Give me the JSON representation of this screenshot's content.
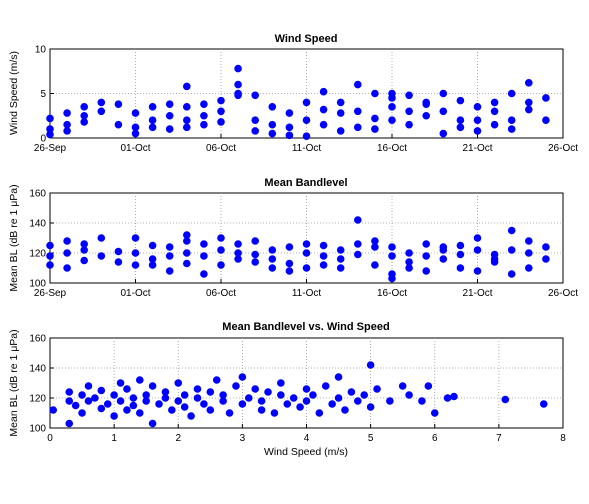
{
  "chart_data": [
    {
      "type": "scatter",
      "title": "Wind Speed",
      "xlabel": "",
      "ylabel": "Wind Speed (m/s)",
      "x_axis": "date",
      "xlim": [
        "26-Sep",
        "26-Oct"
      ],
      "ylim": [
        0,
        10
      ],
      "xticks": [
        "26-Sep",
        "01-Oct",
        "06-Oct",
        "11-Oct",
        "16-Oct",
        "21-Oct",
        "26-Oct"
      ],
      "yticks": [
        0,
        5,
        10
      ],
      "grid": true,
      "color": "#0000ff",
      "x": [
        "26-Sep",
        "26-Sep",
        "26-Sep",
        "27-Sep",
        "27-Sep",
        "27-Sep",
        "28-Sep",
        "28-Sep",
        "28-Sep",
        "29-Sep",
        "29-Sep",
        "30-Sep",
        "30-Sep",
        "01-Oct",
        "01-Oct",
        "01-Oct",
        "02-Oct",
        "02-Oct",
        "02-Oct",
        "03-Oct",
        "03-Oct",
        "03-Oct",
        "04-Oct",
        "04-Oct",
        "04-Oct",
        "04-Oct",
        "05-Oct",
        "05-Oct",
        "05-Oct",
        "06-Oct",
        "06-Oct",
        "06-Oct",
        "07-Oct",
        "07-Oct",
        "07-Oct",
        "07-Oct",
        "08-Oct",
        "08-Oct",
        "08-Oct",
        "09-Oct",
        "09-Oct",
        "09-Oct",
        "10-Oct",
        "10-Oct",
        "10-Oct",
        "11-Oct",
        "11-Oct",
        "11-Oct",
        "12-Oct",
        "12-Oct",
        "12-Oct",
        "13-Oct",
        "13-Oct",
        "13-Oct",
        "14-Oct",
        "14-Oct",
        "14-Oct",
        "15-Oct",
        "15-Oct",
        "15-Oct",
        "16-Oct",
        "16-Oct",
        "16-Oct",
        "16-Oct",
        "17-Oct",
        "17-Oct",
        "17-Oct",
        "18-Oct",
        "18-Oct",
        "18-Oct",
        "19-Oct",
        "19-Oct",
        "19-Oct",
        "20-Oct",
        "20-Oct",
        "20-Oct",
        "21-Oct",
        "21-Oct",
        "21-Oct",
        "22-Oct",
        "22-Oct",
        "22-Oct",
        "23-Oct",
        "23-Oct",
        "23-Oct",
        "24-Oct",
        "24-Oct",
        "24-Oct",
        "25-Oct",
        "25-Oct"
      ],
      "y": [
        0.4,
        2.2,
        1.0,
        1.5,
        2.8,
        0.8,
        2.5,
        3.5,
        1.8,
        4.0,
        3.0,
        1.5,
        3.8,
        1.2,
        2.8,
        0.5,
        3.5,
        2.0,
        1.2,
        2.5,
        3.8,
        1.0,
        2.0,
        3.5,
        5.8,
        1.2,
        2.5,
        3.8,
        1.5,
        1.8,
        4.2,
        3.0,
        5.0,
        7.8,
        6.0,
        4.8,
        2.0,
        4.8,
        0.8,
        3.5,
        1.5,
        0.5,
        2.8,
        0.3,
        1.2,
        2.0,
        4.0,
        0.2,
        1.5,
        3.2,
        5.2,
        2.8,
        0.8,
        4.0,
        1.2,
        6.0,
        3.0,
        2.2,
        5.0,
        1.0,
        4.5,
        2.0,
        3.5,
        5.0,
        4.8,
        3.0,
        1.5,
        4.0,
        2.5,
        3.8,
        3.0,
        5.0,
        0.5,
        4.2,
        2.0,
        1.2,
        3.5,
        0.8,
        2.0,
        4.0,
        1.5,
        3.0,
        2.0,
        5.0,
        1.0,
        6.2,
        4.0,
        3.2,
        4.5,
        2.0
      ]
    },
    {
      "type": "scatter",
      "title": "Mean Bandlevel",
      "xlabel": "",
      "ylabel": "Mean BL (dB re 1 μPa)",
      "x_axis": "date",
      "xlim": [
        "26-Sep",
        "26-Oct"
      ],
      "ylim": [
        100,
        160
      ],
      "xticks": [
        "26-Sep",
        "01-Oct",
        "06-Oct",
        "11-Oct",
        "16-Oct",
        "21-Oct",
        "26-Oct"
      ],
      "yticks": [
        100,
        120,
        140,
        160
      ],
      "grid": true,
      "color": "#0000ff",
      "x": [
        "26-Sep",
        "26-Sep",
        "26-Sep",
        "27-Sep",
        "27-Sep",
        "27-Sep",
        "28-Sep",
        "28-Sep",
        "28-Sep",
        "29-Sep",
        "29-Sep",
        "30-Sep",
        "30-Sep",
        "01-Oct",
        "01-Oct",
        "01-Oct",
        "02-Oct",
        "02-Oct",
        "02-Oct",
        "03-Oct",
        "03-Oct",
        "03-Oct",
        "04-Oct",
        "04-Oct",
        "04-Oct",
        "04-Oct",
        "05-Oct",
        "05-Oct",
        "05-Oct",
        "06-Oct",
        "06-Oct",
        "06-Oct",
        "07-Oct",
        "07-Oct",
        "07-Oct",
        "08-Oct",
        "08-Oct",
        "08-Oct",
        "09-Oct",
        "09-Oct",
        "09-Oct",
        "10-Oct",
        "10-Oct",
        "10-Oct",
        "11-Oct",
        "11-Oct",
        "11-Oct",
        "12-Oct",
        "12-Oct",
        "12-Oct",
        "13-Oct",
        "13-Oct",
        "13-Oct",
        "14-Oct",
        "14-Oct",
        "14-Oct",
        "15-Oct",
        "15-Oct",
        "15-Oct",
        "16-Oct",
        "16-Oct",
        "16-Oct",
        "16-Oct",
        "17-Oct",
        "17-Oct",
        "17-Oct",
        "18-Oct",
        "18-Oct",
        "18-Oct",
        "19-Oct",
        "19-Oct",
        "19-Oct",
        "20-Oct",
        "20-Oct",
        "20-Oct",
        "21-Oct",
        "21-Oct",
        "21-Oct",
        "22-Oct",
        "22-Oct",
        "22-Oct",
        "23-Oct",
        "23-Oct",
        "23-Oct",
        "24-Oct",
        "24-Oct",
        "24-Oct",
        "25-Oct",
        "25-Oct"
      ],
      "y": [
        112,
        118,
        125,
        110,
        128,
        120,
        115,
        122,
        126,
        118,
        130,
        121,
        114,
        130,
        120,
        112,
        116,
        125,
        112,
        118,
        124,
        108,
        120,
        128,
        132,
        113,
        118,
        126,
        106,
        122,
        112,
        130,
        120,
        126,
        116,
        114,
        119,
        128,
        110,
        122,
        116,
        108,
        124,
        113,
        110,
        120,
        126,
        112,
        118,
        125,
        110,
        122,
        116,
        126,
        119,
        142,
        124,
        112,
        128,
        106,
        118,
        103,
        124,
        110,
        114,
        120,
        126,
        118,
        108,
        122,
        116,
        124,
        110,
        119,
        125,
        130,
        108,
        122,
        116,
        119,
        114,
        135,
        106,
        122,
        110,
        128,
        120,
        116,
        124
      ]
    },
    {
      "type": "scatter",
      "title": "Mean Bandlevel vs. Wind Speed",
      "xlabel": "Wind Speed (m/s)",
      "ylabel": "Mean BL (dB re 1 μPa)",
      "xlim": [
        0,
        8
      ],
      "ylim": [
        100,
        160
      ],
      "xticks": [
        0,
        1,
        2,
        3,
        4,
        5,
        6,
        7,
        8
      ],
      "yticks": [
        100,
        120,
        140,
        160
      ],
      "grid": true,
      "color": "#0000ff",
      "x": [
        0.05,
        0.3,
        0.3,
        0.3,
        0.4,
        0.5,
        0.5,
        0.6,
        0.6,
        0.7,
        0.8,
        0.8,
        0.9,
        1.0,
        1.0,
        1.1,
        1.1,
        1.2,
        1.2,
        1.3,
        1.3,
        1.4,
        1.4,
        1.5,
        1.5,
        1.6,
        1.6,
        1.7,
        1.8,
        1.8,
        1.9,
        2.0,
        2.0,
        2.1,
        2.1,
        2.2,
        2.3,
        2.3,
        2.4,
        2.5,
        2.5,
        2.6,
        2.7,
        2.7,
        2.8,
        2.9,
        3.0,
        3.0,
        3.1,
        3.2,
        3.3,
        3.3,
        3.4,
        3.5,
        3.6,
        3.6,
        3.7,
        3.8,
        3.9,
        4.0,
        4.0,
        4.1,
        4.2,
        4.3,
        4.4,
        4.5,
        4.5,
        4.6,
        4.7,
        4.8,
        4.9,
        5.0,
        5.0,
        5.1,
        5.3,
        5.5,
        5.6,
        5.8,
        5.9,
        6.0,
        6.2,
        6.3,
        7.1,
        7.7
      ],
      "y": [
        112,
        103,
        118,
        124,
        115,
        122,
        110,
        128,
        118,
        120,
        113,
        125,
        116,
        122,
        108,
        130,
        118,
        112,
        126,
        120,
        115,
        132,
        110,
        122,
        118,
        103,
        128,
        116,
        120,
        124,
        112,
        118,
        130,
        114,
        122,
        108,
        126,
        120,
        116,
        124,
        112,
        132,
        118,
        122,
        110,
        128,
        134,
        116,
        120,
        126,
        112,
        118,
        124,
        110,
        122,
        130,
        116,
        120,
        114,
        126,
        118,
        122,
        110,
        128,
        116,
        120,
        134,
        112,
        124,
        118,
        122,
        142,
        114,
        126,
        118,
        128,
        122,
        118,
        128,
        110,
        120,
        121,
        119,
        116
      ]
    }
  ]
}
